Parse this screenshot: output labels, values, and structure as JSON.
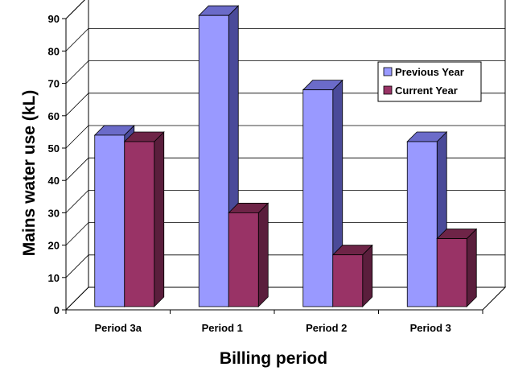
{
  "chart_data": {
    "type": "bar",
    "categories": [
      "Period 3a",
      "Period 1",
      "Period 2",
      "Period 3"
    ],
    "series": [
      {
        "name": "Previous Year",
        "values": [
          53,
          90,
          67,
          51
        ]
      },
      {
        "name": "Current Year",
        "values": [
          51,
          29,
          16,
          21
        ]
      }
    ],
    "xlabel": "Billing period",
    "ylabel": "Mains water use (kL)",
    "ylim": [
      0,
      90
    ],
    "yticks": [
      "0",
      "10",
      "20",
      "30",
      "40",
      "50",
      "60",
      "70",
      "80",
      "90"
    ],
    "grid": true,
    "legend": "right",
    "colors": {
      "series": [
        "#9999FF",
        "#993366"
      ],
      "series_side": [
        "#4A4A99",
        "#5A1E3C"
      ],
      "series_top": [
        "#6B6BC9",
        "#6E2447"
      ]
    }
  }
}
